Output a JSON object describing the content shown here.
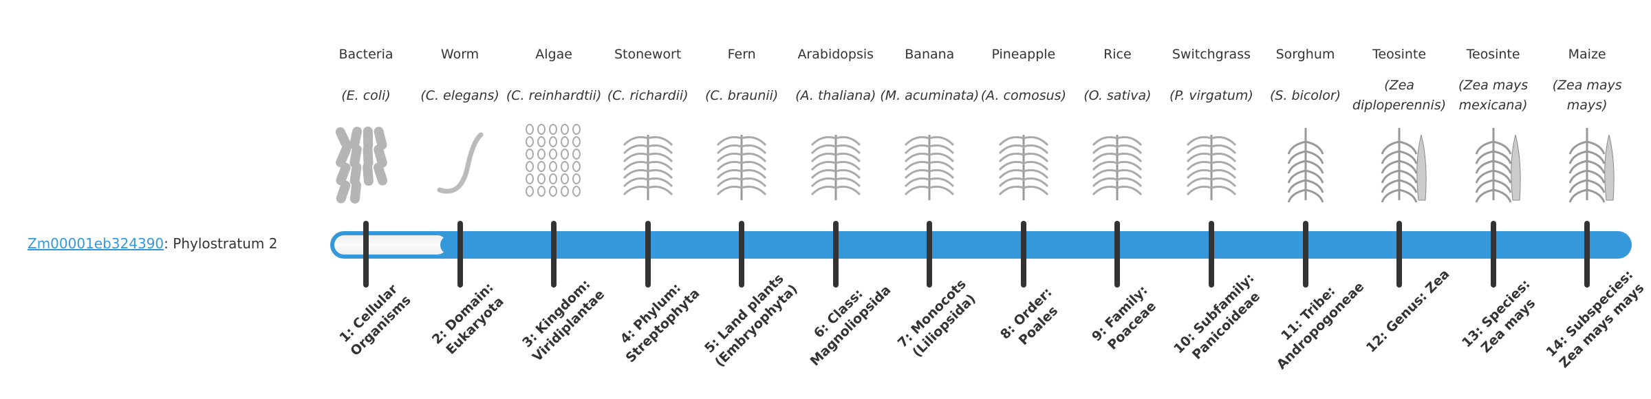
{
  "gene": {
    "id": "Zm00001eb324390",
    "suffix": ": Phylostratum 2"
  },
  "progress": {
    "stratum": 2,
    "total": 14
  },
  "colors": {
    "accent": "#3498db",
    "tick": "#333333",
    "text": "#333333"
  },
  "strata": [
    {
      "common": "Bacteria",
      "sci": "(E. coli)",
      "rank": "1: Cellular Organisms",
      "icon": "bacteria-icon"
    },
    {
      "common": "Worm",
      "sci": "(C. elegans)",
      "rank": "2: Domain: Eukaryota",
      "icon": "worm-icon"
    },
    {
      "common": "Algae",
      "sci": "(C. reinhardtii)",
      "rank": "3: Kingdom: Viridiplantae",
      "icon": "algae-icon"
    },
    {
      "common": "Stonewort",
      "sci": "(C. richardii)",
      "rank": "4: Phylum: Streptophyta",
      "icon": "stonewort-icon"
    },
    {
      "common": "Fern",
      "sci": "(C. braunii)",
      "rank": "5: Land plants (Embryophyta)",
      "icon": "fern-icon"
    },
    {
      "common": "Arabidopsis",
      "sci": "(A. thaliana)",
      "rank": "6: Class: Magnoliopsida",
      "icon": "arabidopsis-icon"
    },
    {
      "common": "Banana",
      "sci": "(M. acuminata)",
      "rank": "7: Monocots (Liliopsida)",
      "icon": "banana-icon"
    },
    {
      "common": "Pineapple",
      "sci": "(A. comosus)",
      "rank": "8: Order: Poales",
      "icon": "pineapple-icon"
    },
    {
      "common": "Rice",
      "sci": "(O. sativa)",
      "rank": "9: Family: Poaceae",
      "icon": "rice-icon"
    },
    {
      "common": "Switchgrass",
      "sci": "(P. virgatum)",
      "rank": "10: Subfamily: Panicoideae",
      "icon": "switchgrass-icon"
    },
    {
      "common": "Sorghum",
      "sci": "(S. bicolor)",
      "rank": "11: Tribe: Andropogoneae",
      "icon": "sorghum-icon"
    },
    {
      "common": "Teosinte",
      "sci": "(Zea diploperennis)",
      "rank": "12: Genus: Zea",
      "icon": "teosinte-icon"
    },
    {
      "common": "Teosinte",
      "sci": "(Zea mays mexicana)",
      "rank": "13: Species: Zea mays",
      "icon": "teosinte-icon"
    },
    {
      "common": "Maize",
      "sci": "(Zea mays mays)",
      "rank": "14: Subspecies: Zea mays mays",
      "icon": "maize-icon"
    }
  ]
}
